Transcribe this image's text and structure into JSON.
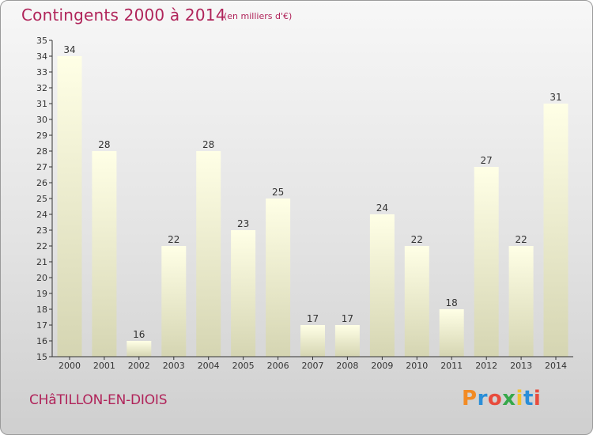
{
  "header": {
    "title": "Contingents 2000 à 2014",
    "subtitle": "(en milliers d'€)"
  },
  "footer": {
    "commune": "CHâTILLON-EN-DIOIS",
    "brand": "Proxiti",
    "brand_colors": [
      "#f28b24",
      "#2a8ed8",
      "#e84c3d",
      "#36a84a",
      "#f2c12e",
      "#2a8ed8",
      "#e84c3d"
    ]
  },
  "colors": {
    "bar_top": "#ffffe6",
    "bar_bottom": "#d5d5b2",
    "axis": "#333333",
    "label": "#333333"
  },
  "chart_data": {
    "type": "bar",
    "categories": [
      "2000",
      "2001",
      "2002",
      "2003",
      "2004",
      "2005",
      "2006",
      "2007",
      "2008",
      "2009",
      "2010",
      "2011",
      "2012",
      "2013",
      "2014"
    ],
    "values": [
      34,
      28,
      16,
      22,
      28,
      23,
      25,
      17,
      17,
      24,
      22,
      18,
      27,
      22,
      31
    ],
    "title": "Contingents 2000 à 2014",
    "subtitle": "(en milliers d'€)",
    "ylim": [
      15,
      35
    ],
    "yticks": [
      15,
      16,
      17,
      18,
      19,
      20,
      21,
      22,
      23,
      24,
      25,
      26,
      27,
      28,
      29,
      30,
      31,
      32,
      33,
      34,
      35
    ],
    "data_labels": true,
    "grid": false
  }
}
